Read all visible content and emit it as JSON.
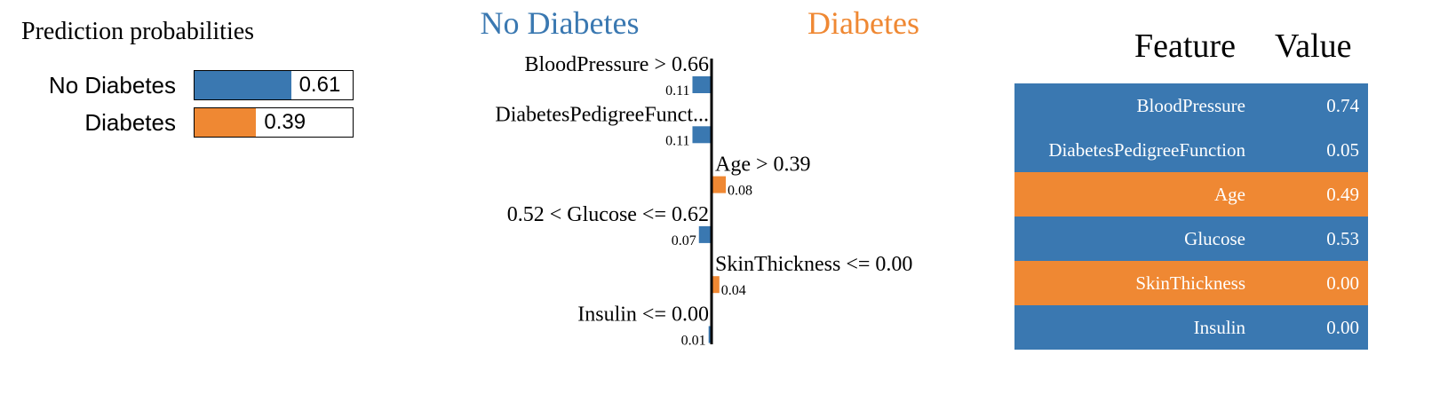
{
  "colors": {
    "no_diabetes": "#3a78b1",
    "diabetes": "#ef8833"
  },
  "prediction": {
    "title": "Prediction probabilities",
    "classes": [
      {
        "label": "No Diabetes",
        "value": 0.61,
        "value_text": "0.61",
        "color": "#3a78b1"
      },
      {
        "label": "Diabetes",
        "value": 0.39,
        "value_text": "0.39",
        "color": "#ef8833"
      }
    ]
  },
  "chart_data": {
    "type": "bar",
    "orientation": "horizontal",
    "class_negative": "No Diabetes",
    "class_positive": "Diabetes",
    "features": [
      {
        "label": "BloodPressure > 0.66",
        "weight": -0.11,
        "weight_text": "0.11"
      },
      {
        "label": "DiabetesPedigreeFunct...",
        "weight": -0.11,
        "weight_text": "0.11"
      },
      {
        "label": "Age > 0.39",
        "weight": 0.08,
        "weight_text": "0.08"
      },
      {
        "label": "0.52 < Glucose <= 0.62",
        "weight": -0.07,
        "weight_text": "0.07"
      },
      {
        "label": "SkinThickness <= 0.00",
        "weight": 0.04,
        "weight_text": "0.04"
      },
      {
        "label": "Insulin <= 0.00",
        "weight": -0.01,
        "weight_text": "0.01"
      }
    ]
  },
  "table": {
    "header_feature": "Feature",
    "header_value": "Value",
    "rows": [
      {
        "feature": "BloodPressure",
        "value": "0.74",
        "color": "#3a78b1"
      },
      {
        "feature": "DiabetesPedigreeFunction",
        "value": "0.05",
        "color": "#3a78b1"
      },
      {
        "feature": "Age",
        "value": "0.49",
        "color": "#ef8833"
      },
      {
        "feature": "Glucose",
        "value": "0.53",
        "color": "#3a78b1"
      },
      {
        "feature": "SkinThickness",
        "value": "0.00",
        "color": "#ef8833"
      },
      {
        "feature": "Insulin",
        "value": "0.00",
        "color": "#3a78b1"
      }
    ]
  }
}
